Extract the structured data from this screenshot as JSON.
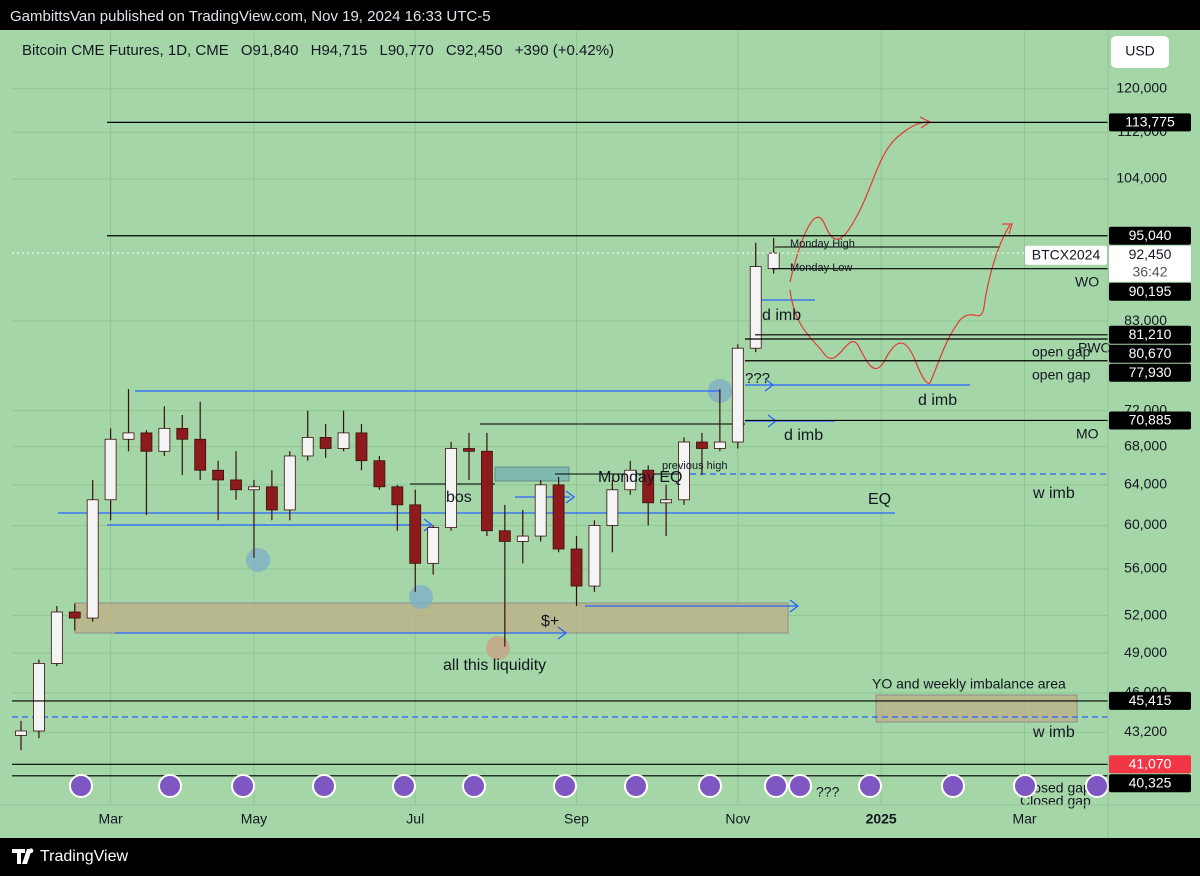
{
  "header": {
    "text": "GambittsVan published on TradingView.com, Nov 19, 2024 16:33 UTC-5"
  },
  "footer": {
    "brand": "TradingView"
  },
  "chart_data": {
    "type": "candlestick",
    "title": "Bitcoin CME Futures, 1D, CME",
    "legend_values": [
      "O91,840",
      "H94,715",
      "L90,770",
      "C92,450",
      "+390 (+0.42%)"
    ],
    "currency": "USD",
    "symbol_tag": "BTCX2024",
    "countdown": "36:42",
    "categories": [
      null,
      null,
      null,
      null,
      null,
      "Mar",
      null,
      null,
      null,
      null,
      null,
      null,
      null,
      "May",
      null,
      null,
      null,
      null,
      null,
      null,
      null,
      null,
      "Jul",
      null,
      null,
      null,
      null,
      null,
      null,
      null,
      null,
      "Sep",
      null,
      null,
      null,
      null,
      null,
      null,
      null,
      null,
      "Nov",
      null,
      null,
      null,
      null,
      null,
      null,
      null,
      "2025",
      null,
      null,
      null,
      null,
      null,
      null,
      null,
      "Mar",
      null,
      null,
      null,
      null
    ],
    "open": [
      43000,
      43300,
      48200,
      52300,
      51800,
      62500,
      68800,
      69500,
      67500,
      70000,
      68800,
      65500,
      64500,
      63500,
      63800,
      61500,
      67000,
      69000,
      67800,
      69500,
      66500,
      63800,
      62000,
      56500,
      59800,
      67800,
      67500,
      59500,
      58500,
      59000,
      64000,
      57800,
      54500,
      60000,
      63500,
      65500,
      62200,
      62500,
      68500,
      67800,
      68500,
      79500,
      90200,
      null,
      null,
      null,
      null,
      null,
      null,
      null,
      null,
      null,
      null,
      null,
      null,
      null,
      null,
      null,
      null,
      null,
      null
    ],
    "high": [
      44000,
      48500,
      52800,
      53000,
      64500,
      70000,
      74500,
      69800,
      72500,
      71500,
      73000,
      66500,
      67500,
      64500,
      65500,
      67500,
      72000,
      70500,
      72000,
      70500,
      67000,
      64000,
      63500,
      60000,
      68500,
      69500,
      69500,
      62000,
      61500,
      64500,
      64800,
      59000,
      60500,
      64500,
      66500,
      66000,
      64000,
      69000,
      69500,
      74500,
      80000,
      94000,
      94700,
      null,
      null,
      null,
      null,
      null,
      null,
      null,
      null,
      null,
      null,
      null,
      null,
      null,
      null,
      null,
      null,
      null,
      null
    ],
    "low": [
      42000,
      42800,
      48000,
      50800,
      51500,
      60500,
      67500,
      61000,
      67000,
      65000,
      64500,
      60500,
      62500,
      57000,
      60500,
      60500,
      66500,
      66800,
      67500,
      65500,
      63500,
      59500,
      54000,
      55500,
      59500,
      64500,
      59000,
      49500,
      56500,
      58500,
      57500,
      52800,
      54000,
      57500,
      63000,
      60000,
      59000,
      62000,
      65000,
      67500,
      67800,
      79000,
      89500,
      null,
      null,
      null,
      null,
      null,
      null,
      null,
      null,
      null,
      null,
      null,
      null,
      null,
      null,
      null,
      null,
      null,
      null
    ],
    "close": [
      43300,
      48200,
      52300,
      51800,
      62500,
      68800,
      69500,
      67500,
      70000,
      68800,
      65500,
      64500,
      63500,
      63800,
      61500,
      67000,
      69000,
      67800,
      69500,
      66500,
      63800,
      62000,
      56500,
      59800,
      67800,
      67500,
      59500,
      58500,
      59000,
      64000,
      57800,
      54500,
      60000,
      63500,
      65500,
      62200,
      62500,
      68500,
      67800,
      68500,
      79500,
      90500,
      92450,
      null,
      null,
      null,
      null,
      null,
      null,
      null,
      null,
      null,
      null,
      null,
      null,
      null,
      null,
      null,
      null,
      null,
      null
    ],
    "up_color": "#f4f4f4",
    "down_color": "#8e1b1b",
    "ylim": [
      38500,
      130700
    ],
    "log_scale": true,
    "grid": true,
    "yticks": [
      {
        "value": 120000,
        "label": "120,000"
      },
      {
        "value": 112000,
        "label": "112,000"
      },
      {
        "value": 104000,
        "label": "104,000"
      },
      {
        "value": 83000,
        "label": "83,000"
      },
      {
        "value": 72000,
        "label": "72,000"
      },
      {
        "value": 68000,
        "label": "68,000"
      },
      {
        "value": 64000,
        "label": "64,000"
      },
      {
        "value": 60000,
        "label": "60,000"
      },
      {
        "value": 56000,
        "label": "56,000"
      },
      {
        "value": 52000,
        "label": "52,000"
      },
      {
        "value": 49000,
        "label": "49,000"
      },
      {
        "value": 46000,
        "label": "46,000"
      },
      {
        "value": 43200,
        "label": "43,200"
      }
    ],
    "levels": [
      {
        "value": 113775,
        "label": "113,775",
        "color": "#000000"
      },
      {
        "value": 95040,
        "label": "95,040",
        "color": "#000000"
      },
      {
        "value": 92450,
        "label": "92,450",
        "color": "#ffffff"
      },
      {
        "value": 90195,
        "label": "90,195",
        "color": "#000000"
      },
      {
        "value": 81210,
        "label": "81,210",
        "color": "#000000"
      },
      {
        "value": 80670,
        "label": "80,670",
        "color": "#000000"
      },
      {
        "value": 77930,
        "label": "77,930",
        "color": "#000000"
      },
      {
        "value": 70885,
        "label": "70,885",
        "color": "#000000"
      },
      {
        "value": 45415,
        "label": "45,415",
        "color": "#000000"
      },
      {
        "value": 41070,
        "label": "41,070",
        "color": "#f23645"
      },
      {
        "value": 40325,
        "label": "40,325",
        "color": "#000000"
      }
    ],
    "annotations": [
      "Monday High",
      "Monday Low",
      "WO",
      "d imb",
      "PWO",
      "open gap",
      "open gap",
      "???",
      "d imb",
      "d imb",
      "MO",
      "previous high",
      "Monday EQ",
      "bos",
      "EQ",
      "w imb",
      "$+",
      "all this liquidity",
      "YO and weekly imbalance area",
      "w imb",
      "???",
      "Closed gap",
      "Closed gap"
    ]
  }
}
